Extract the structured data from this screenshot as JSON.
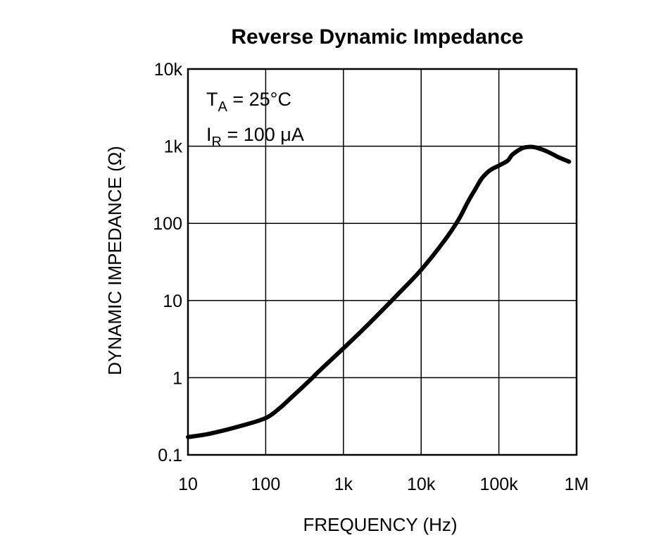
{
  "chart_data": {
    "type": "line",
    "title": "Reverse Dynamic Impedance",
    "xlabel": "FREQUENCY (Hz)",
    "ylabel": "DYNAMIC IMPEDANCE (Ω)",
    "x_scale": "log",
    "y_scale": "log",
    "xlim": [
      10,
      1000000
    ],
    "ylim": [
      0.1,
      10000
    ],
    "x_ticks": [
      10,
      100,
      1000,
      10000,
      100000,
      1000000
    ],
    "x_tick_labels": [
      "10",
      "100",
      "1k",
      "10k",
      "100k",
      "1M"
    ],
    "y_ticks": [
      0.1,
      1,
      10,
      100,
      1000,
      10000
    ],
    "y_tick_labels": [
      "0.1",
      "1",
      "10",
      "100",
      "1k",
      "10k"
    ],
    "grid": true,
    "annotations": [
      {
        "main": "T",
        "sub": "A",
        "rest": " = 25°C"
      },
      {
        "main": "I",
        "sub": "R",
        "rest": " = 100 μA"
      }
    ],
    "series": [
      {
        "x": [
          10,
          20,
          50,
          100,
          150,
          200,
          300,
          400,
          500,
          1000,
          2000,
          5000,
          10000,
          20000,
          30000,
          40000,
          50000,
          60000,
          70000,
          80000,
          100000,
          130000,
          150000,
          200000,
          250000,
          300000,
          400000,
          500000,
          600000,
          800000
        ],
        "y": [
          0.17,
          0.19,
          0.24,
          0.3,
          0.4,
          0.52,
          0.76,
          1.0,
          1.25,
          2.4,
          4.7,
          12,
          25,
          60,
          110,
          190,
          280,
          380,
          450,
          500,
          560,
          650,
          780,
          940,
          980,
          960,
          870,
          780,
          710,
          630
        ]
      }
    ]
  }
}
